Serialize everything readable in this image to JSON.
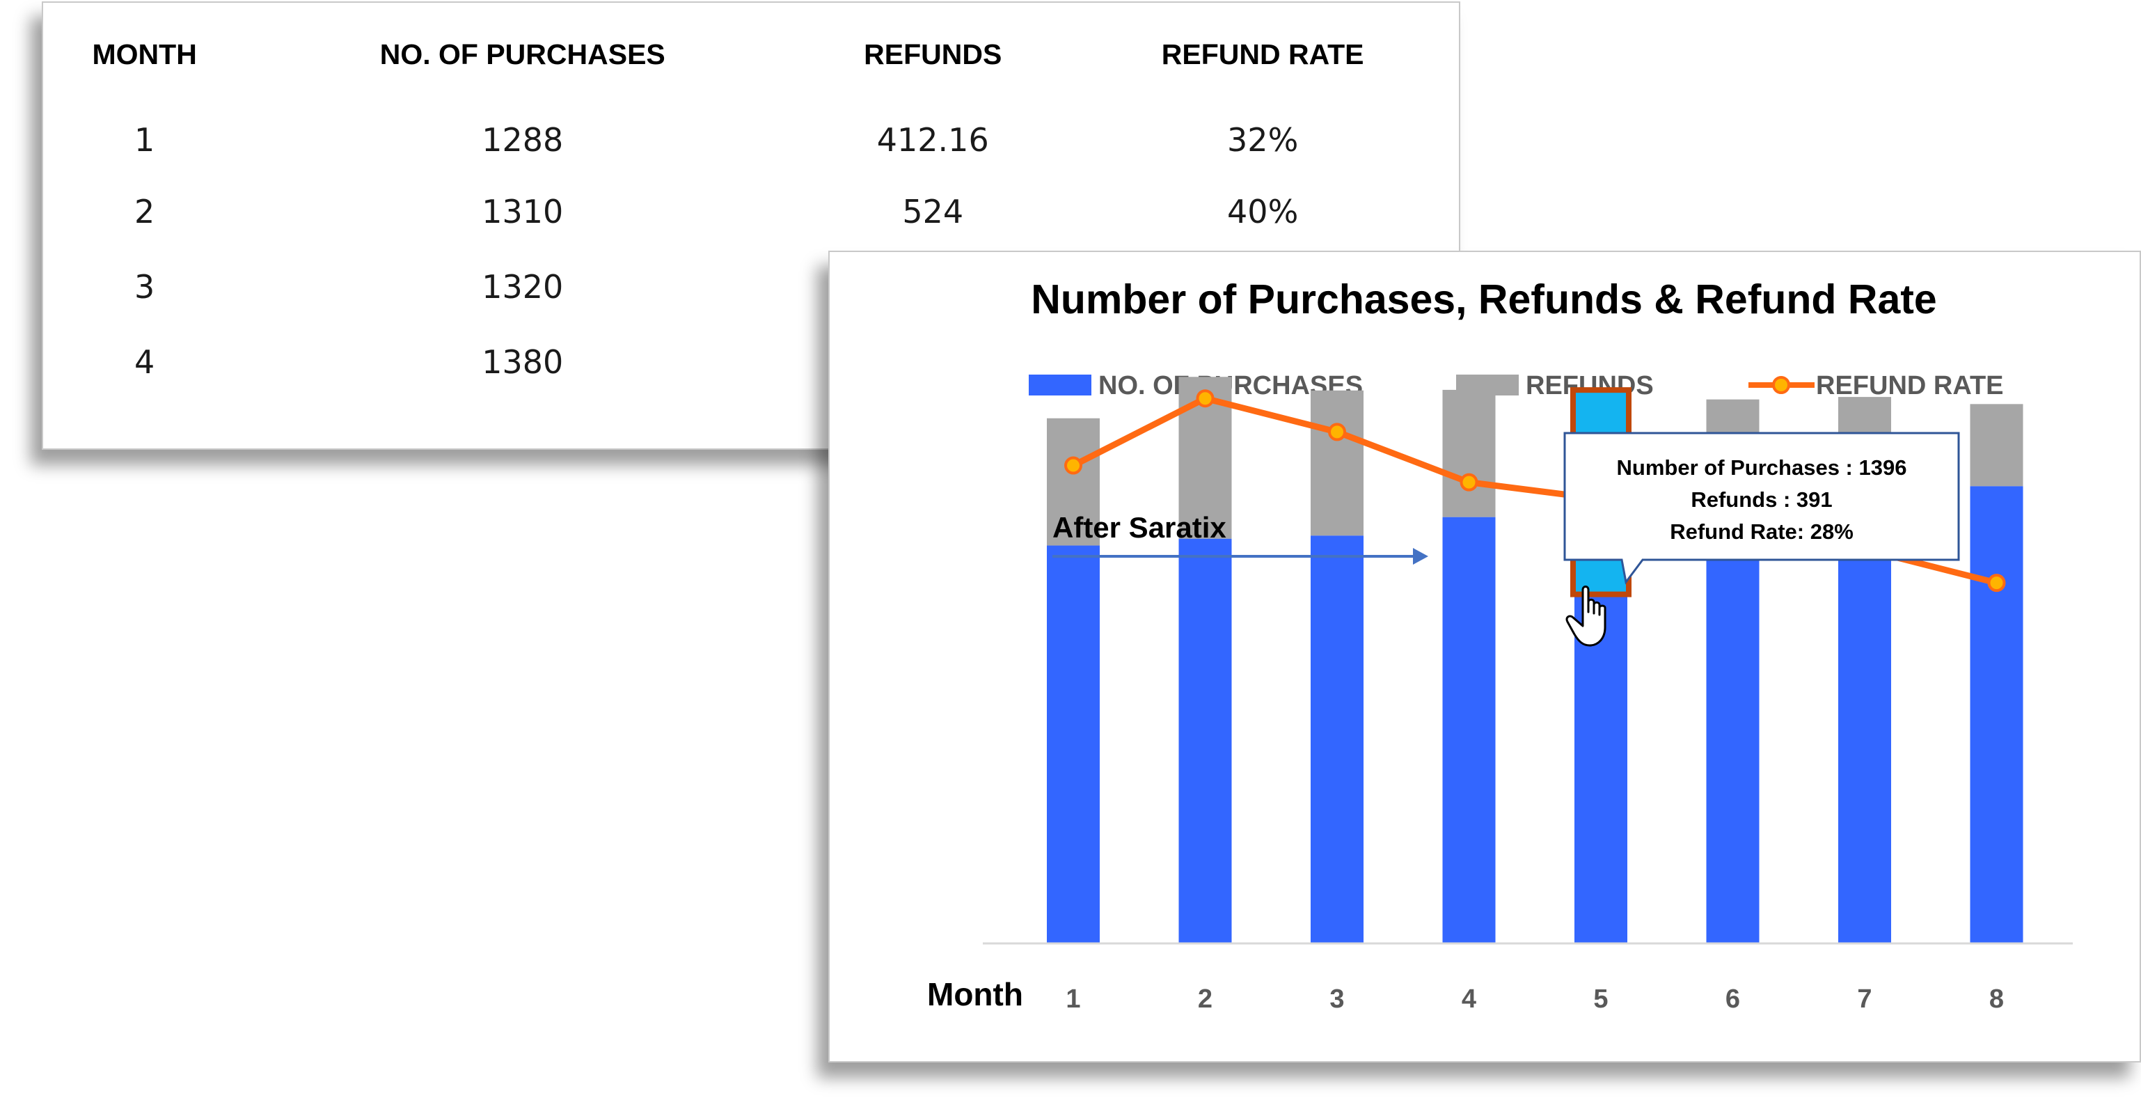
{
  "table": {
    "headers": [
      "MONTH",
      "NO. OF PURCHASES",
      "REFUNDS",
      "REFUND RATE"
    ],
    "rows": [
      [
        "1",
        "1288",
        "412.16",
        "32%"
      ],
      [
        "2",
        "1310",
        "524",
        "40%"
      ],
      [
        "3",
        "1320",
        "",
        ""
      ],
      [
        "4",
        "1380",
        "",
        ""
      ]
    ]
  },
  "chart_data": {
    "type": "bar",
    "title": "Number of Purchases, Refunds & Refund Rate",
    "xlabel": "Month",
    "ylabel": "",
    "categories": [
      "1",
      "2",
      "3",
      "4",
      "5",
      "6",
      "7",
      "8"
    ],
    "series": [
      {
        "name": "NO. OF PURCHASES",
        "kind": "stacked-bar",
        "color": "#3366ff",
        "values": [
          1288,
          1310,
          1320,
          1380,
          1396,
          1420,
          1450,
          1480
        ]
      },
      {
        "name": "REFUNDS",
        "kind": "stacked-bar",
        "color": "#a6a6a6",
        "values": [
          412,
          524,
          470,
          412,
          391,
          341,
          319,
          266
        ]
      },
      {
        "name": "REFUND RATE",
        "kind": "line",
        "color": "#ff6a13",
        "marker_color": "#ffb400",
        "values": [
          32,
          40,
          36,
          30,
          28,
          24,
          22,
          18
        ]
      }
    ],
    "ylim": [
      0,
      1900
    ],
    "y2lim": [
      -25,
      45
    ],
    "grid": false,
    "legend": "top",
    "highlight": {
      "category": "5",
      "color": "#14b4f0",
      "border": "#c0480a"
    },
    "annotation": {
      "text": "After Saratix"
    },
    "tooltip": {
      "lines": [
        "Number of Purchases : 1396",
        "Refunds :  391",
        "Refund Rate: 28%"
      ]
    },
    "colors": {
      "arrow": "#4472c4",
      "axis": "#d9d9d9",
      "tooltip_border": "#2f5597"
    }
  }
}
